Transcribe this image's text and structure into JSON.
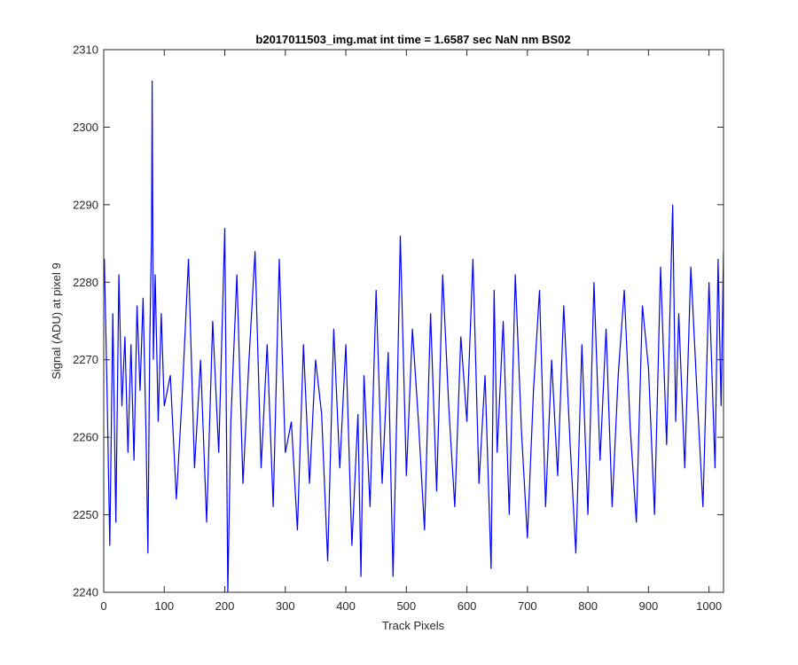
{
  "window": {
    "title": "b2017011503_img.mat int time = 1.6587 sec  NaN nm BS02"
  },
  "chart_data": {
    "type": "line",
    "title": "b2017011503_img.mat int time = 1.6587 sec  NaN nm BS02",
    "xlabel": "Track Pixels",
    "ylabel": "Signal (ADU) at pixel 9",
    "xlim": [
      0,
      1024
    ],
    "ylim": [
      2240,
      2310
    ],
    "xticks": [
      "0",
      "100",
      "200",
      "300",
      "400",
      "500",
      "600",
      "700",
      "800",
      "900",
      "1000"
    ],
    "yticks": [
      "2240",
      "2250",
      "2260",
      "2270",
      "2280",
      "2290",
      "2300",
      "2310"
    ],
    "grid": false,
    "line_color": "#0000ff",
    "series": [
      {
        "x": [
          1,
          5,
          10,
          15,
          20,
          25,
          30,
          35,
          40,
          45,
          50,
          55,
          60,
          65,
          70,
          73,
          76,
          79,
          80,
          82,
          85,
          90,
          95,
          100,
          110,
          120,
          130,
          140,
          150,
          160,
          170,
          180,
          190,
          200,
          205,
          210,
          220,
          230,
          240,
          250,
          260,
          270,
          280,
          290,
          300,
          310,
          320,
          330,
          340,
          350,
          360,
          370,
          380,
          390,
          400,
          410,
          420,
          425,
          430,
          440,
          450,
          460,
          470,
          478,
          485,
          490,
          500,
          510,
          520,
          530,
          540,
          550,
          560,
          570,
          580,
          590,
          600,
          610,
          620,
          630,
          640,
          645,
          650,
          660,
          670,
          680,
          690,
          700,
          710,
          720,
          730,
          740,
          750,
          760,
          770,
          780,
          790,
          800,
          810,
          820,
          830,
          840,
          850,
          860,
          870,
          880,
          890,
          900,
          910,
          920,
          930,
          940,
          945,
          950,
          960,
          970,
          980,
          990,
          1000,
          1010,
          1015,
          1020,
          1024
        ],
        "y": [
          2283,
          2268,
          2246,
          2276,
          2249,
          2281,
          2264,
          2273,
          2258,
          2272,
          2257,
          2277,
          2266,
          2278,
          2260,
          2245,
          2272,
          2286,
          2306,
          2270,
          2281,
          2262,
          2276,
          2264,
          2268,
          2252,
          2266,
          2283,
          2256,
          2270,
          2249,
          2275,
          2258,
          2287,
          2240,
          2262,
          2281,
          2254,
          2270,
          2284,
          2256,
          2272,
          2251,
          2283,
          2258,
          2262,
          2248,
          2272,
          2254,
          2270,
          2263,
          2244,
          2274,
          2256,
          2272,
          2246,
          2263,
          2242,
          2268,
          2251,
          2279,
          2254,
          2271,
          2242,
          2266,
          2286,
          2255,
          2274,
          2262,
          2248,
          2276,
          2253,
          2281,
          2264,
          2251,
          2273,
          2262,
          2283,
          2254,
          2268,
          2243,
          2279,
          2258,
          2275,
          2250,
          2281,
          2261,
          2247,
          2266,
          2279,
          2251,
          2270,
          2255,
          2277,
          2260,
          2245,
          2272,
          2250,
          2280,
          2257,
          2274,
          2251,
          2268,
          2279,
          2261,
          2249,
          2277,
          2269,
          2250,
          2282,
          2259,
          2290,
          2262,
          2276,
          2256,
          2282,
          2266,
          2251,
          2280,
          2256,
          2283,
          2264,
          2284
        ]
      }
    ]
  }
}
